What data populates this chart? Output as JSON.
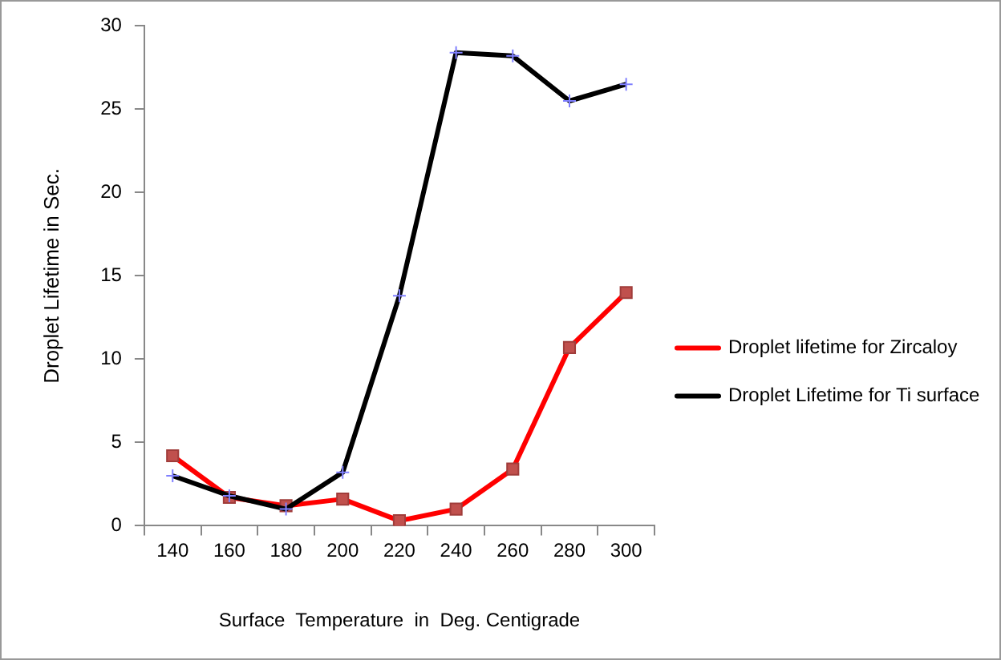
{
  "chart_data": {
    "type": "line",
    "xlabel": "Surface  Temperature  in  Deg. Centigrade",
    "ylabel": "Droplet Lifetime in Sec.",
    "categories": [
      "140",
      "160",
      "180",
      "200",
      "220",
      "240",
      "260",
      "280",
      "300"
    ],
    "series": [
      {
        "name": "Droplet lifetime for Zircaloy",
        "color": "#ff0000",
        "marker": "square",
        "values": [
          4.2,
          1.7,
          1.2,
          1.6,
          0.3,
          1.0,
          3.4,
          10.7,
          14.0
        ]
      },
      {
        "name": "Droplet Lifetime for Ti surface",
        "color": "#000000",
        "marker": "cross",
        "values": [
          3.0,
          1.8,
          1.0,
          3.2,
          13.8,
          28.4,
          28.2,
          25.5,
          26.5
        ]
      }
    ],
    "ylim": [
      0,
      30
    ],
    "yticks": [
      0,
      5,
      10,
      15,
      20,
      25,
      30
    ],
    "grid": false,
    "legend": "right",
    "line_style": "solid"
  }
}
